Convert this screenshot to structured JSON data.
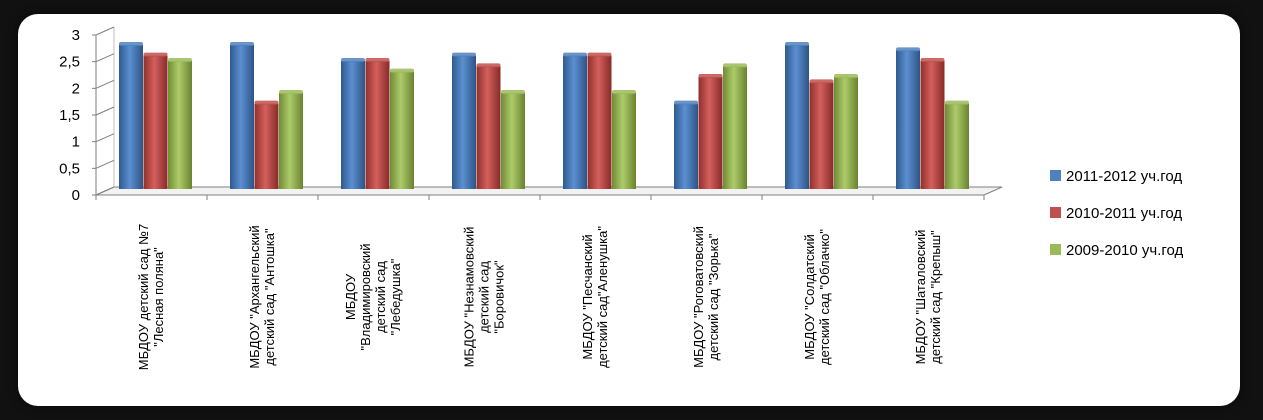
{
  "chart_data": {
    "type": "bar",
    "ylim": [
      0,
      3
    ],
    "yticks": [
      "0",
      "0,5",
      "1",
      "1,5",
      "2",
      "2,5",
      "3"
    ],
    "grid": false,
    "legend_position": "right",
    "categories": [
      [
        "МБДОУ детский сад №7",
        "\"Лесная поляна\""
      ],
      [
        "МБДОУ \"Архангельский",
        "детский сад \"Антошка\""
      ],
      [
        "МБДОУ",
        "\"Владимировский",
        "детский сад",
        "\"Лебедушка\""
      ],
      [
        "МБДОУ  \"Незнамовский",
        "детский сад",
        "\"Боровичок\""
      ],
      [
        "МБДОУ \"Песчанский",
        "детский сад\"Аленушка\""
      ],
      [
        "МБДОУ \"Роговатовский",
        "детский сад \"Зорька\""
      ],
      [
        "МБДОУ  \"Солдатский",
        "детский сад \"Облачко\""
      ],
      [
        "МБДОУ \"Шаталовский",
        "детский сад \"Крепыш\""
      ]
    ],
    "series": [
      {
        "name": "2011-2012 уч.год",
        "color": "#4f81bd",
        "values": [
          2.7,
          2.7,
          2.4,
          2.5,
          2.5,
          1.6,
          2.7,
          2.6
        ]
      },
      {
        "name": "2010-2011 уч.год",
        "color": "#c0504d",
        "values": [
          2.5,
          1.6,
          2.4,
          2.3,
          2.5,
          2.1,
          2.0,
          2.4
        ]
      },
      {
        "name": "2009-2010 уч.год",
        "color": "#9bbb59",
        "values": [
          2.4,
          1.8,
          2.2,
          1.8,
          1.8,
          2.3,
          2.1,
          1.6
        ]
      }
    ]
  }
}
